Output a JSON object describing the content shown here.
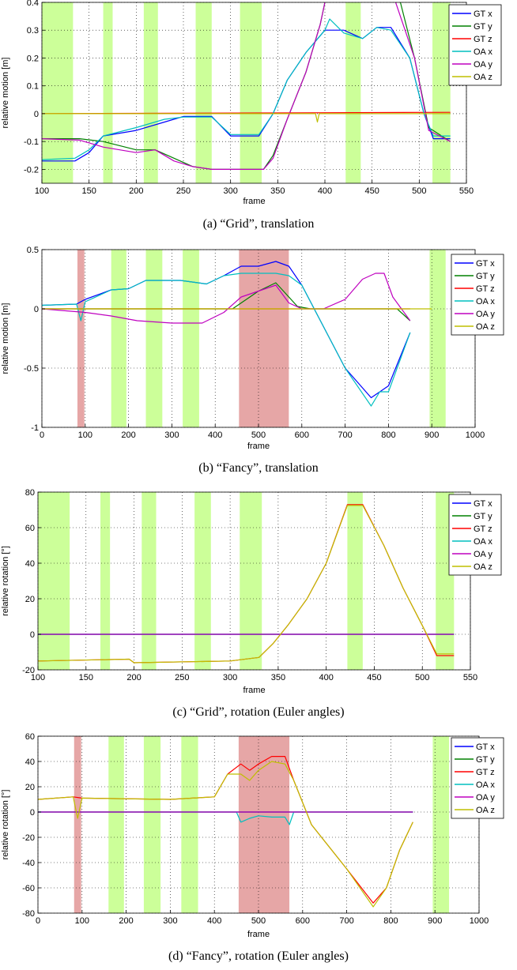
{
  "colors": {
    "GT x": "#0000ff",
    "GT y": "#008000",
    "GT z": "#ff0000",
    "OA x": "#00bfbf",
    "OA y": "#bf00bf",
    "OA z": "#bfbf00",
    "green_band": "#ccff99",
    "red_band": "#e6a6a6"
  },
  "legend_labels": [
    "GT x",
    "GT y",
    "GT z",
    "OA x",
    "OA y",
    "OA z"
  ],
  "charts": [
    {
      "caption": "(a)  “Grid”, translation",
      "chart_data": {
        "type": "line",
        "grid": true,
        "legend": "top-right",
        "xlabel": "frame",
        "ylabel": "relative motion [m]",
        "xlim": [
          100,
          550
        ],
        "ylim": [
          -0.25,
          0.4
        ],
        "xticks": [
          100,
          150,
          200,
          250,
          300,
          350,
          400,
          450,
          500,
          550
        ],
        "yticks": [
          -0.2,
          -0.1,
          0,
          0.1,
          0.2,
          0.3,
          0.4
        ],
        "green_bands": [
          [
            100,
            133
          ],
          [
            165,
            175
          ],
          [
            208,
            223
          ],
          [
            263,
            280
          ],
          [
            310,
            333
          ],
          [
            422,
            438
          ],
          [
            514,
            533
          ]
        ],
        "red_bands": [],
        "series": [
          {
            "name": "GT x",
            "x": [
              100,
              135,
              150,
              165,
              200,
              230,
              250,
              280,
              300,
              330,
              345,
              360,
              380,
              400,
              420,
              440,
              455,
              470,
              490,
              505,
              515,
              533
            ],
            "y": [
              -0.17,
              -0.17,
              -0.14,
              -0.08,
              -0.06,
              -0.03,
              -0.01,
              -0.01,
              -0.08,
              -0.08,
              0.0,
              0.12,
              0.22,
              0.3,
              0.3,
              0.27,
              0.31,
              0.31,
              0.2,
              0.0,
              -0.09,
              -0.09
            ]
          },
          {
            "name": "GT y",
            "x": [
              100,
              140,
              165,
              200,
              220,
              240,
              260,
              280,
              300,
              335,
              345,
              360,
              380,
              395,
              400
            ],
            "y": [
              -0.09,
              -0.09,
              -0.1,
              -0.13,
              -0.13,
              -0.16,
              -0.19,
              -0.2,
              -0.2,
              -0.2,
              -0.15,
              -0.02,
              0.15,
              0.32,
              0.4
            ]
          },
          {
            "name": "GT y",
            "x": [
              480,
              495,
              510,
              533
            ],
            "y": [
              0.4,
              0.2,
              -0.05,
              -0.1
            ]
          },
          {
            "name": "GT z",
            "x": [
              100,
              533
            ],
            "y": [
              0.0,
              0.005
            ]
          },
          {
            "name": "OA x",
            "x": [
              100,
              135,
              150,
              165,
              200,
              230,
              250,
              280,
              300,
              330,
              345,
              360,
              380,
              400,
              405,
              420,
              440,
              455,
              470,
              490,
              505,
              515,
              533
            ],
            "y": [
              -0.165,
              -0.16,
              -0.13,
              -0.08,
              -0.05,
              -0.02,
              -0.012,
              -0.012,
              -0.075,
              -0.075,
              0.0,
              0.12,
              0.22,
              0.3,
              0.34,
              0.29,
              0.27,
              0.31,
              0.3,
              0.2,
              0.0,
              -0.08,
              -0.08
            ]
          },
          {
            "name": "OA y",
            "x": [
              100,
              140,
              165,
              200,
              220,
              240,
              260,
              280,
              300,
              335,
              345,
              360,
              380,
              395,
              400
            ],
            "y": [
              -0.09,
              -0.095,
              -0.12,
              -0.14,
              -0.13,
              -0.17,
              -0.19,
              -0.2,
              -0.2,
              -0.2,
              -0.16,
              -0.02,
              0.15,
              0.32,
              0.4
            ]
          },
          {
            "name": "OA y",
            "x": [
              475,
              495,
              510,
              533
            ],
            "y": [
              0.4,
              0.2,
              -0.06,
              -0.1
            ]
          },
          {
            "name": "OA z",
            "x": [
              100,
              300,
              390,
              392,
              394,
              533
            ],
            "y": [
              0.0,
              0.0,
              0.0,
              -0.03,
              0.0,
              0.0
            ]
          }
        ]
      }
    },
    {
      "caption": "(b)  “Fancy”, translation",
      "chart_data": {
        "type": "line",
        "grid": true,
        "legend": "top-right",
        "xlabel": "frame",
        "ylabel": "relative motion [m]",
        "xlim": [
          0,
          1000
        ],
        "ylim": [
          -1,
          0.5
        ],
        "xticks": [
          0,
          100,
          200,
          300,
          400,
          500,
          600,
          700,
          800,
          900,
          1000
        ],
        "yticks": [
          -1,
          -0.5,
          0,
          0.5
        ],
        "green_bands": [
          [
            160,
            195
          ],
          [
            240,
            278
          ],
          [
            325,
            363
          ],
          [
            895,
            932
          ]
        ],
        "red_bands": [
          [
            82,
            98
          ],
          [
            455,
            570
          ]
        ],
        "series": [
          {
            "name": "GT x",
            "x": [
              0,
              80,
              100,
              160,
              200,
              240,
              320,
              380,
              420,
              460,
              500,
              540,
              570,
              600,
              650,
              700,
              760,
              800,
              850
            ],
            "y": [
              0.03,
              0.04,
              0.08,
              0.16,
              0.17,
              0.24,
              0.24,
              0.21,
              0.28,
              0.36,
              0.36,
              0.4,
              0.36,
              0.2,
              -0.15,
              -0.5,
              -0.75,
              -0.65,
              -0.2
            ]
          },
          {
            "name": "GT y",
            "x": [
              0,
              440,
              460,
              500,
              540,
              570,
              590,
              620,
              700,
              760,
              790,
              820,
              850
            ],
            "y": [
              0.0,
              0.0,
              0.05,
              0.15,
              0.22,
              0.1,
              0.02,
              0.0,
              0.0,
              0.0,
              0.0,
              0.0,
              -0.1
            ]
          },
          {
            "name": "GT z",
            "x": [
              0,
              850
            ],
            "y": [
              0.0,
              0.0
            ]
          },
          {
            "name": "OA x",
            "x": [
              0,
              80,
              90,
              100,
              160,
              200,
              240,
              320,
              380,
              420,
              460,
              500,
              540,
              570,
              600,
              650,
              700,
              760,
              780,
              800,
              850
            ],
            "y": [
              0.03,
              0.04,
              -0.1,
              0.06,
              0.16,
              0.17,
              0.24,
              0.24,
              0.21,
              0.28,
              0.3,
              0.3,
              0.3,
              0.28,
              0.2,
              -0.15,
              -0.5,
              -0.82,
              -0.7,
              -0.7,
              -0.2
            ]
          },
          {
            "name": "OA y",
            "x": [
              0,
              100,
              160,
              220,
              300,
              370,
              420,
              460,
              500,
              540,
              570,
              600,
              650,
              700,
              740,
              770,
              790,
              810,
              850
            ],
            "y": [
              0.0,
              -0.03,
              -0.06,
              -0.1,
              -0.12,
              -0.12,
              -0.03,
              0.1,
              0.15,
              0.2,
              0.05,
              0.0,
              0.0,
              0.08,
              0.25,
              0.3,
              0.3,
              0.1,
              -0.1
            ]
          },
          {
            "name": "OA z",
            "x": [
              0,
              900
            ],
            "y": [
              0.0,
              0.0
            ]
          }
        ]
      }
    },
    {
      "caption": "(c)  “Grid”, rotation (Euler angles)",
      "chart_data": {
        "type": "line",
        "grid": true,
        "legend": "top-right",
        "xlabel": "frame",
        "ylabel": "relative rotation [°]",
        "xlim": [
          100,
          550
        ],
        "ylim": [
          -20,
          80
        ],
        "xticks": [
          100,
          150,
          200,
          250,
          300,
          350,
          400,
          450,
          500,
          550
        ],
        "yticks": [
          -20,
          0,
          20,
          40,
          60,
          80
        ],
        "green_bands": [
          [
            100,
            133
          ],
          [
            165,
            175
          ],
          [
            208,
            223
          ],
          [
            263,
            280
          ],
          [
            310,
            333
          ],
          [
            422,
            438
          ],
          [
            514,
            533
          ]
        ],
        "red_bands": [],
        "series": [
          {
            "name": "GT x",
            "x": [
              100,
              533
            ],
            "y": [
              0.0,
              0.0
            ]
          },
          {
            "name": "GT y",
            "x": [
              100,
              533
            ],
            "y": [
              0.0,
              0.0
            ]
          },
          {
            "name": "GT z",
            "x": [
              100,
              195,
              200,
              300,
              330,
              345,
              360,
              380,
              400,
              422,
              438,
              460,
              480,
              500,
              515,
              533
            ],
            "y": [
              -15,
              -14,
              -16,
              -15,
              -13,
              -5,
              5,
              20,
              40,
              73,
              73,
              50,
              26,
              5,
              -12,
              -12
            ]
          },
          {
            "name": "OA x",
            "x": [
              100,
              533
            ],
            "y": [
              0.0,
              0.0
            ]
          },
          {
            "name": "OA y",
            "x": [
              100,
              533
            ],
            "y": [
              0.0,
              0.0
            ]
          },
          {
            "name": "OA z",
            "x": [
              100,
              195,
              200,
              300,
              330,
              345,
              360,
              380,
              400,
              422,
              438,
              460,
              480,
              500,
              515,
              533
            ],
            "y": [
              -15,
              -14,
              -16,
              -15,
              -13,
              -5,
              5,
              20,
              40,
              72.5,
              72.5,
              50,
              26,
              5,
              -11,
              -11
            ]
          }
        ]
      }
    },
    {
      "caption": "(d)  “Fancy”, rotation (Euler angles)",
      "chart_data": {
        "type": "line",
        "grid": true,
        "legend": "top-right",
        "xlabel": "frame",
        "ylabel": "relative rotation [°]",
        "xlim": [
          0,
          1000
        ],
        "ylim": [
          -80,
          60
        ],
        "xticks": [
          0,
          100,
          200,
          300,
          400,
          500,
          600,
          700,
          800,
          900,
          1000
        ],
        "yticks": [
          -80,
          -60,
          -40,
          -20,
          0,
          20,
          40,
          60
        ],
        "green_bands": [
          [
            160,
            195
          ],
          [
            240,
            278
          ],
          [
            325,
            363
          ],
          [
            895,
            932
          ]
        ],
        "red_bands": [
          [
            82,
            98
          ],
          [
            455,
            570
          ]
        ],
        "series": [
          {
            "name": "GT x",
            "x": [
              0,
              850
            ],
            "y": [
              0.0,
              0.0
            ]
          },
          {
            "name": "GT y",
            "x": [
              0,
              850
            ],
            "y": [
              0.0,
              0.0
            ]
          },
          {
            "name": "GT z",
            "x": [
              0,
              80,
              100,
              300,
              400,
              430,
              460,
              480,
              500,
              530,
              560,
              580,
              620,
              700,
              760,
              790,
              820,
              850
            ],
            "y": [
              10,
              12,
              11,
              10,
              12,
              30,
              38,
              33,
              38,
              44,
              44,
              25,
              -10,
              -45,
              -72,
              -60,
              -30,
              -8
            ]
          },
          {
            "name": "OA x",
            "x": [
              0,
              450,
              460,
              480,
              500,
              530,
              560,
              570,
              580,
              850
            ],
            "y": [
              0.0,
              0.0,
              -8,
              -5,
              -3,
              -4,
              -4,
              -10,
              0.0,
              0.0
            ]
          },
          {
            "name": "OA y",
            "x": [
              0,
              850
            ],
            "y": [
              0.0,
              0.0
            ]
          },
          {
            "name": "OA z",
            "x": [
              0,
              80,
              90,
              100,
              300,
              400,
              430,
              460,
              480,
              500,
              530,
              560,
              580,
              620,
              700,
              760,
              790,
              820,
              850
            ],
            "y": [
              10,
              12,
              -5,
              11,
              10,
              12,
              30,
              30,
              25,
              33,
              40,
              38,
              25,
              -10,
              -45,
              -75,
              -60,
              -30,
              -8
            ]
          }
        ]
      }
    }
  ]
}
